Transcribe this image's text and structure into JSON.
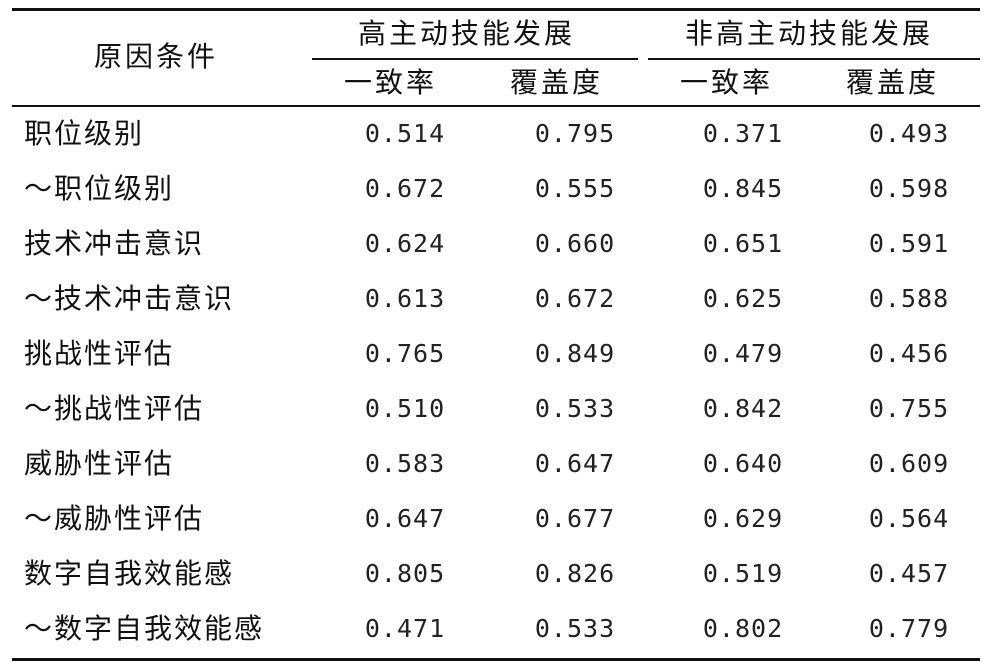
{
  "header": {
    "row_label": "原因条件",
    "group1": "高主动技能发展",
    "group2": "非高主动技能发展",
    "sub": [
      "一致率",
      "覆盖度",
      "一致率",
      "覆盖度"
    ]
  },
  "rows": [
    {
      "label": "职位级别",
      "values": [
        "0.514",
        "0.795",
        "0.371",
        "0.493"
      ]
    },
    {
      "label": "～职位级别",
      "values": [
        "0.672",
        "0.555",
        "0.845",
        "0.598"
      ]
    },
    {
      "label": "技术冲击意识",
      "values": [
        "0.624",
        "0.660",
        "0.651",
        "0.591"
      ]
    },
    {
      "label": "～技术冲击意识",
      "values": [
        "0.613",
        "0.672",
        "0.625",
        "0.588"
      ]
    },
    {
      "label": "挑战性评估",
      "values": [
        "0.765",
        "0.849",
        "0.479",
        "0.456"
      ]
    },
    {
      "label": "～挑战性评估",
      "values": [
        "0.510",
        "0.533",
        "0.842",
        "0.755"
      ]
    },
    {
      "label": "威胁性评估",
      "values": [
        "0.583",
        "0.647",
        "0.640",
        "0.609"
      ]
    },
    {
      "label": "～威胁性评估",
      "values": [
        "0.647",
        "0.677",
        "0.629",
        "0.564"
      ]
    },
    {
      "label": "数字自我效能感",
      "values": [
        "0.805",
        "0.826",
        "0.519",
        "0.457"
      ]
    },
    {
      "label": "～数字自我效能感",
      "values": [
        "0.471",
        "0.533",
        "0.802",
        "0.779"
      ]
    }
  ]
}
